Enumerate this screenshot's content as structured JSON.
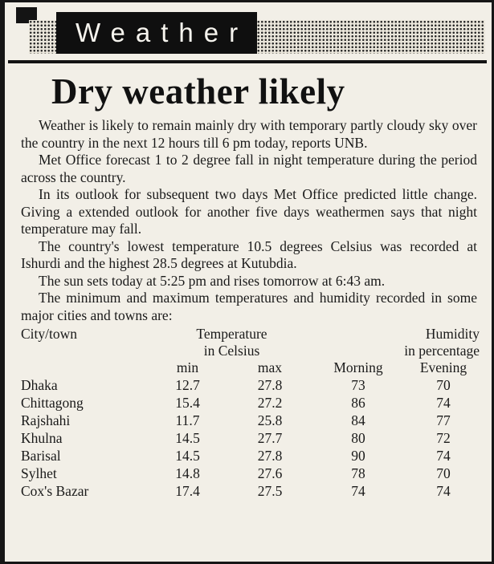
{
  "banner": {
    "title": "Weather"
  },
  "article": {
    "headline": "Dry weather likely",
    "paragraphs": [
      "Weather is likely to remain mainly dry with temporary partly cloudy sky over the country in the next 12 hours till 6 pm today, reports UNB.",
      "Met Office forecast 1 to 2 degree fall in night temperature during the period across the country.",
      "In its outlook for subsequent two days Met Office predicted little change. Giving a extended outlook for another five days weathermen says that night temperature may fall.",
      "The country's lowest temperature 10.5 degrees Celsius was recorded at Ishurdi and the highest 28.5 degrees at Kutubdia.",
      "The sun sets today at 5:25 pm and rises tomorrow at 6:43 am.",
      "The minimum and maximum temperatures and humidity recorded in some major cities and towns are:"
    ]
  },
  "table": {
    "headers": {
      "city": "City/town",
      "temperature_line1": "Temperature",
      "temperature_line2": "in Celsius",
      "humidity_line1": "Humidity",
      "humidity_line2": "in percentage",
      "min": "min",
      "max": "max",
      "morning": "Morning",
      "evening": "Evening"
    },
    "rows": [
      {
        "city": "Dhaka",
        "min": "12.7",
        "max": "27.8",
        "morning": "73",
        "evening": "70"
      },
      {
        "city": "Chittagong",
        "min": "15.4",
        "max": "27.2",
        "morning": "86",
        "evening": "74"
      },
      {
        "city": "Rajshahi",
        "min": "11.7",
        "max": "25.8",
        "morning": "84",
        "evening": "77"
      },
      {
        "city": "Khulna",
        "min": "14.5",
        "max": "27.7",
        "morning": "80",
        "evening": "72"
      },
      {
        "city": "Barisal",
        "min": "14.5",
        "max": "27.8",
        "morning": "90",
        "evening": "74"
      },
      {
        "city": "Sylhet",
        "min": "14.8",
        "max": "27.6",
        "morning": "78",
        "evening": "70"
      },
      {
        "city": "Cox's Bazar",
        "min": "17.4",
        "max": "27.5",
        "morning": "74",
        "evening": "74"
      }
    ]
  }
}
